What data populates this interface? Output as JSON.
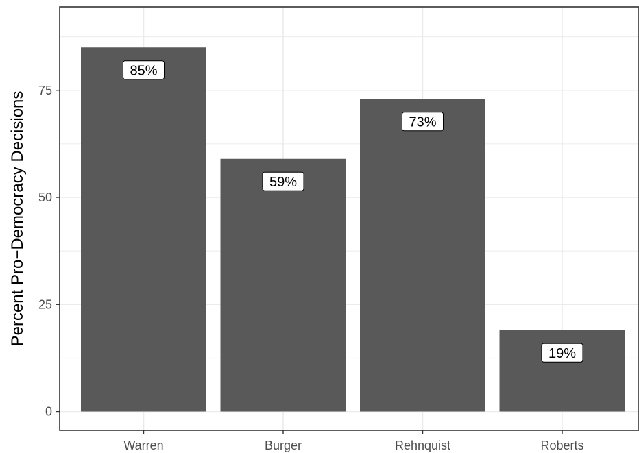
{
  "chart_data": {
    "type": "bar",
    "categories": [
      "Warren",
      "Burger",
      "Rehnquist",
      "Roberts"
    ],
    "values": [
      85,
      59,
      73,
      19
    ],
    "data_labels": [
      "85%",
      "59%",
      "73%",
      "19%"
    ],
    "title": "",
    "xlabel": "",
    "ylabel": "Percent Pro−Democracy Decisions",
    "ylim": [
      0,
      94
    ],
    "yticks": [
      0,
      25,
      50,
      75
    ],
    "ytick_labels": [
      "0",
      "25",
      "50",
      "75"
    ],
    "grid": true,
    "legend": "none",
    "colors": {
      "bar": "#595959",
      "grid": "#ebebeb",
      "panel_border": "#333333",
      "label_background": "#ffffff"
    }
  }
}
